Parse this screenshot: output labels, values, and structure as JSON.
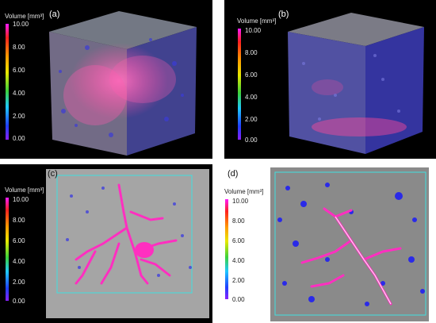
{
  "panels": [
    {
      "label": "(a)"
    },
    {
      "label": "(b)"
    },
    {
      "label": "(c)"
    },
    {
      "label": "(d)"
    }
  ],
  "legend": {
    "title": "Volume [mm³]",
    "ticks": [
      "10.00",
      "8.00",
      "6.00",
      "4.00",
      "2.00",
      "0.00"
    ],
    "colors": [
      "#ff1aff",
      "#ff2020",
      "#ff9a00",
      "#e8e800",
      "#3cd23c",
      "#1ec8ff",
      "#2040ff",
      "#8a20ff"
    ]
  }
}
